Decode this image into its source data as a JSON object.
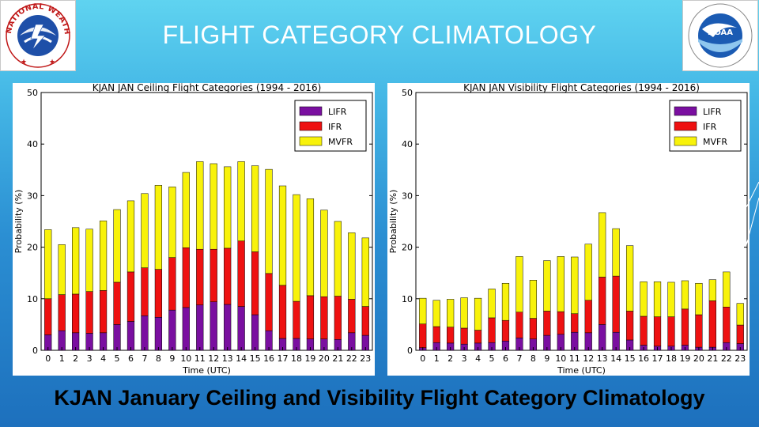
{
  "slide": {
    "title": "FLIGHT CATEGORY CLIMATOLOGY",
    "caption": "KJAN January Ceiling and Visibility Flight Category Climatology"
  },
  "colors": {
    "LIFR": "#7a0fa0",
    "IFR": "#ee1111",
    "MVFR": "#f8f20a"
  },
  "logos": {
    "left": {
      "icon": "nws-logo-icon",
      "text": "NATIONAL WEATHER SERVICE"
    },
    "right": {
      "icon": "noaa-logo-icon",
      "text": "NOAA"
    }
  },
  "chart_data": [
    {
      "type": "bar",
      "stacked": true,
      "title": "KJAN JAN Ceiling Flight Categories (1994 - 2016)",
      "xlabel": "Time (UTC)",
      "ylabel": "Probability (%)",
      "ylim": [
        0,
        50
      ],
      "yticks": [
        0,
        10,
        20,
        30,
        40,
        50
      ],
      "categories": [
        "0",
        "1",
        "2",
        "3",
        "4",
        "5",
        "6",
        "7",
        "8",
        "9",
        "10",
        "11",
        "12",
        "13",
        "14",
        "15",
        "16",
        "17",
        "18",
        "19",
        "20",
        "21",
        "22",
        "23"
      ],
      "legend": "top-right",
      "series": [
        {
          "name": "LIFR",
          "values": [
            3.0,
            3.8,
            3.4,
            3.3,
            3.4,
            5.0,
            5.6,
            6.7,
            6.4,
            7.8,
            8.3,
            8.8,
            9.4,
            8.9,
            8.5,
            6.9,
            3.8,
            2.3,
            2.3,
            2.2,
            2.2,
            2.1,
            3.4,
            2.9
          ]
        },
        {
          "name": "IFR",
          "values": [
            7.0,
            7.0,
            7.5,
            8.1,
            8.2,
            8.2,
            9.6,
            9.3,
            9.3,
            10.2,
            11.6,
            10.8,
            10.2,
            10.9,
            12.7,
            12.2,
            11.1,
            10.3,
            7.2,
            8.4,
            8.2,
            8.4,
            6.5,
            5.6
          ]
        },
        {
          "name": "MVFR",
          "values": [
            13.4,
            9.7,
            12.9,
            12.1,
            13.5,
            14.1,
            13.8,
            14.4,
            16.3,
            13.7,
            14.6,
            17.0,
            16.6,
            15.8,
            15.4,
            16.7,
            20.2,
            19.3,
            20.7,
            18.8,
            16.8,
            14.5,
            12.9,
            13.3
          ]
        }
      ]
    },
    {
      "type": "bar",
      "stacked": true,
      "title": "KJAN JAN Visibility Flight Categories (1994 - 2016)",
      "xlabel": "Time (UTC)",
      "ylabel": "Probability (%)",
      "ylim": [
        0,
        50
      ],
      "yticks": [
        0,
        10,
        20,
        30,
        40,
        50
      ],
      "categories": [
        "0",
        "1",
        "2",
        "3",
        "4",
        "5",
        "6",
        "7",
        "8",
        "9",
        "10",
        "11",
        "12",
        "13",
        "14",
        "15",
        "16",
        "17",
        "18",
        "19",
        "20",
        "21",
        "22",
        "23"
      ],
      "legend": "top-right",
      "series": [
        {
          "name": "LIFR",
          "values": [
            0.5,
            1.5,
            1.4,
            1.2,
            1.4,
            1.5,
            1.8,
            2.4,
            2.2,
            2.9,
            3.1,
            3.5,
            3.4,
            5.0,
            3.5,
            2.0,
            1.0,
            0.8,
            0.8,
            1.0,
            0.6,
            0.6,
            1.5,
            1.3
          ]
        },
        {
          "name": "IFR",
          "values": [
            4.6,
            3.1,
            3.1,
            3.1,
            2.5,
            4.8,
            4.0,
            5.0,
            4.0,
            4.7,
            4.4,
            3.6,
            6.3,
            9.2,
            10.9,
            5.6,
            5.6,
            5.7,
            5.7,
            7.0,
            6.3,
            9.0,
            6.9,
            3.6
          ]
        },
        {
          "name": "MVFR",
          "values": [
            5.0,
            5.1,
            5.4,
            5.9,
            6.2,
            5.6,
            7.2,
            10.8,
            7.4,
            9.8,
            10.7,
            11.0,
            10.9,
            12.5,
            9.2,
            12.7,
            6.7,
            6.8,
            6.7,
            5.5,
            6.1,
            4.1,
            6.8,
            4.2
          ]
        }
      ]
    }
  ]
}
